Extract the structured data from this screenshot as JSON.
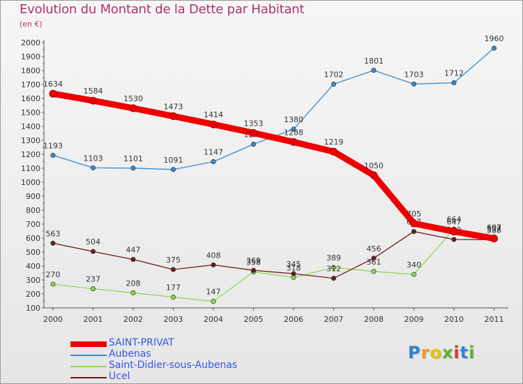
{
  "header": {
    "title": "Evolution du Montant de la Dette par Habitant",
    "unit": "(en €)"
  },
  "logo": {
    "text": "Proxiti",
    "letters": [
      "P",
      "r",
      "o",
      "x",
      "i",
      "t",
      "i"
    ],
    "colors": [
      "#2e84d6",
      "#f39a1e",
      "#e8c400",
      "#5ab52a",
      "#d83a2a",
      "#2e84d6",
      "#5ab52a"
    ]
  },
  "chart_data": {
    "type": "line",
    "title": "Evolution du Montant de la Dette par Habitant",
    "xlabel": "",
    "ylabel": "(en €)",
    "x": [
      "2000",
      "2001",
      "2002",
      "2003",
      "2004",
      "2005",
      "2006",
      "2007",
      "2008",
      "2009",
      "2010",
      "2011"
    ],
    "ylim": [
      100,
      2000
    ],
    "yticks": [
      100,
      200,
      300,
      400,
      500,
      600,
      700,
      800,
      900,
      1000,
      1100,
      1200,
      1300,
      1400,
      1500,
      1600,
      1700,
      1800,
      1900,
      2000
    ],
    "grid": false,
    "legend_position": "bottom-left",
    "series": [
      {
        "name": "SAINT-PRIVAT",
        "color": "#ee0000",
        "values": [
          1634,
          1584,
          1530,
          1473,
          1414,
          1353,
          1288,
          1219,
          1050,
          705,
          647,
          597
        ],
        "labels": [
          "1634",
          "1584",
          "1530",
          "1473",
          "1414",
          "1353",
          "1288",
          "1219",
          "1050",
          "705",
          "647",
          "597"
        ]
      },
      {
        "name": "Aubenas",
        "color": "#3a8ad0",
        "values": [
          1193,
          1103,
          1101,
          1091,
          1147,
          1272,
          1380,
          1702,
          1801,
          1703,
          1712,
          1960
        ],
        "labels": [
          "1193",
          "1103",
          "1101",
          "1091",
          "1147",
          "1272",
          "1380",
          "1702",
          "1801",
          "1703",
          "1712",
          "1960"
        ]
      },
      {
        "name": "Saint-Didier-sous-Aubenas",
        "color": "#8ed850",
        "values": [
          270,
          237,
          208,
          177,
          147,
          358,
          318,
          389,
          361,
          340,
          664,
          607
        ],
        "labels": [
          "270",
          "237",
          "208",
          "177",
          "147",
          "358",
          "318",
          "389",
          "361",
          "340",
          "664",
          "607"
        ]
      },
      {
        "name": "Ucel",
        "color": "#6a1c1c",
        "values": [
          563,
          504,
          447,
          375,
          408,
          369,
          345,
          312,
          456,
          647,
          590,
          588
        ],
        "labels": [
          "563",
          "504",
          "447",
          "375",
          "408",
          "369",
          "345",
          "312",
          "456",
          "647",
          "590",
          "588"
        ]
      }
    ]
  }
}
